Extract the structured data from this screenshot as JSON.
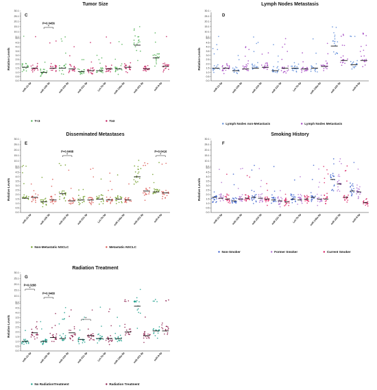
{
  "chart_data": [
    {
      "type": "scatter",
      "panel": "C",
      "title": "Tumor Size",
      "ylabel": "Relative Levels",
      "categories": [
        "miR-21-5p",
        "miR-126-3p",
        "miR-210-3p",
        "miR-221-3p",
        "Let-7b-5p",
        "miR-146a-5p",
        "miR-222-3p",
        "miR-9-5p"
      ],
      "series": [
        {
          "name": "T<3",
          "color": "#4caf50",
          "values": [
            1.6,
            1.0,
            1.5,
            1.1,
            1.2,
            1.4,
            4.2,
            2.7
          ]
        },
        {
          "name": "T≥3",
          "color": "#c2185b",
          "values": [
            1.5,
            1.5,
            1.4,
            1.2,
            1.4,
            1.6,
            1.4,
            1.7
          ]
        }
      ],
      "annotations": [
        {
          "text": "P=0.0456",
          "category": "miR-126-3p"
        }
      ],
      "legend": "bottom"
    },
    {
      "type": "scatter",
      "panel": "D",
      "title": "Lymph Nodes Metastasis",
      "ylabel": "Relative Levels",
      "categories": [
        "miR-21-5p",
        "miR-126-3p",
        "miR-210-3p",
        "miR-221-3p",
        "Let-7b-5p",
        "miR-146a-5p",
        "miR-222-3p",
        "miR-9-5p"
      ],
      "series": [
        {
          "name": "Lymph Nodes non-Metastasis",
          "color": "#5b8ad8",
          "values": [
            1.5,
            1.2,
            1.5,
            1.2,
            1.5,
            1.5,
            4.1,
            1.9
          ]
        },
        {
          "name": "Lymph Nodes Metastasis",
          "color": "#a040c0",
          "values": [
            1.5,
            1.4,
            1.6,
            1.5,
            1.4,
            1.7,
            2.4,
            2.4
          ]
        }
      ],
      "annotations": [],
      "legend": "bottom"
    },
    {
      "type": "scatter",
      "panel": "E",
      "title": "Disseminated Metastases",
      "ylabel": "Relative Levels",
      "categories": [
        "miR-21-5p",
        "miR-126-3p",
        "miR-210-3p",
        "miR-221-3p",
        "Let-7b-5p",
        "miR-146a-5p",
        "miR-222-3p",
        "miR-9-5p"
      ],
      "series": [
        {
          "name": "Non-Metastatic NSCLC",
          "color": "#6a9a1f",
          "values": [
            1.6,
            1.2,
            2.1,
            1.4,
            1.5,
            1.5,
            4.0,
            2.3
          ]
        },
        {
          "name": "Metastatic NSCLC",
          "color": "#d9534f",
          "values": [
            1.7,
            1.4,
            1.3,
            1.4,
            1.4,
            1.4,
            2.4,
            2.2
          ]
        }
      ],
      "annotations": [
        {
          "text": "P=0.0468",
          "category": "miR-210-3p"
        },
        {
          "text": "P=0.0416",
          "category": "miR-9-5p"
        }
      ],
      "legend": "bottom"
    },
    {
      "type": "scatter",
      "panel": "F",
      "title": "Smoking History",
      "ylabel": "Relative Levels",
      "categories": [
        "miR-21-5p",
        "miR-126-3p",
        "miR-210-3p",
        "miR-221-3p",
        "Let-7b-5p",
        "miR-146a-5p",
        "miR-222-3p",
        "miR-9-5p"
      ],
      "series": [
        {
          "name": "Non-Smoker",
          "color": "#3a5fcd",
          "values": [
            1.7,
            1.3,
            1.7,
            1.4,
            1.5,
            1.7,
            3.7,
            2.4
          ]
        },
        {
          "name": "Former Smoker",
          "color": "#b070d0",
          "values": [
            1.6,
            1.5,
            1.6,
            1.3,
            1.4,
            1.5,
            3.2,
            2.3
          ]
        },
        {
          "name": "Current Smoker",
          "color": "#d81b60",
          "values": [
            1.5,
            1.6,
            1.5,
            1.2,
            1.5,
            1.5,
            1.7,
            1.1
          ]
        }
      ],
      "annotations": [],
      "legend": "bottom"
    },
    {
      "type": "scatter",
      "panel": "G",
      "title": "Radiation Treatment",
      "ylabel": "Relative Levels",
      "categories": [
        "miR-21-5p",
        "miR-126-3p",
        "miR-210-3p",
        "miR-221-3p",
        "Let-7b-5p",
        "miR-146a-5p",
        "miR-222-3p",
        "miR-9-5p"
      ],
      "series": [
        {
          "name": "No RadiationTreatment",
          "color": "#1a9e8a",
          "values": [
            1.0,
            1.0,
            1.3,
            1.2,
            1.3,
            1.3,
            4.7,
            2.1
          ]
        },
        {
          "name": "Radiation Treatment",
          "color": "#8b1a4a",
          "values": [
            1.9,
            1.4,
            1.9,
            1.6,
            1.3,
            2.0,
            1.6,
            2.1
          ]
        }
      ],
      "annotations": [
        {
          "text": "P=0.0288",
          "category": "miR-21-5p"
        },
        {
          "text": "P=0.0468",
          "category": "miR-126-3p"
        },
        {
          "text": "",
          "category": "miR-221-3p"
        }
      ],
      "legend": "bottom"
    }
  ],
  "y_ticks": [
    "0.0",
    "0.5",
    "1.0",
    "1.5",
    "2.0",
    "2.5",
    "3.0",
    "3.5",
    "4.0",
    "4.5",
    "5.0",
    "5.1",
    "10.1",
    "15.1",
    "20.1",
    "25.1",
    "30.1"
  ]
}
